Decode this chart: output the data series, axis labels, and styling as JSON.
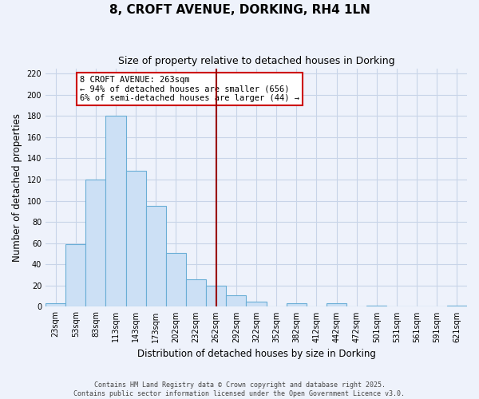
{
  "title": "8, CROFT AVENUE, DORKING, RH4 1LN",
  "subtitle": "Size of property relative to detached houses in Dorking",
  "xlabel": "Distribution of detached houses by size in Dorking",
  "ylabel": "Number of detached properties",
  "bar_labels": [
    "23sqm",
    "53sqm",
    "83sqm",
    "113sqm",
    "143sqm",
    "173sqm",
    "202sqm",
    "232sqm",
    "262sqm",
    "292sqm",
    "322sqm",
    "352sqm",
    "382sqm",
    "412sqm",
    "442sqm",
    "472sqm",
    "501sqm",
    "531sqm",
    "561sqm",
    "591sqm",
    "621sqm"
  ],
  "bar_values": [
    3,
    59,
    120,
    180,
    128,
    95,
    51,
    26,
    20,
    11,
    5,
    0,
    3,
    0,
    3,
    0,
    1,
    0,
    0,
    0,
    1
  ],
  "bar_color": "#cce0f5",
  "bar_edge_color": "#6aaed6",
  "vline_x": 8,
  "vline_color": "#990000",
  "annotation_text": "8 CROFT AVENUE: 263sqm\n← 94% of detached houses are smaller (656)\n6% of semi-detached houses are larger (44) →",
  "ylim": [
    0,
    225
  ],
  "yticks": [
    0,
    20,
    40,
    60,
    80,
    100,
    120,
    140,
    160,
    180,
    200,
    220
  ],
  "footer_line1": "Contains HM Land Registry data © Crown copyright and database right 2025.",
  "footer_line2": "Contains public sector information licensed under the Open Government Licence v3.0.",
  "bg_color": "#eef2fb",
  "grid_color": "#c8d4e8",
  "title_fontsize": 11,
  "subtitle_fontsize": 9,
  "label_fontsize": 8.5,
  "tick_fontsize": 7,
  "footer_fontsize": 6,
  "annotation_fontsize": 7.5
}
